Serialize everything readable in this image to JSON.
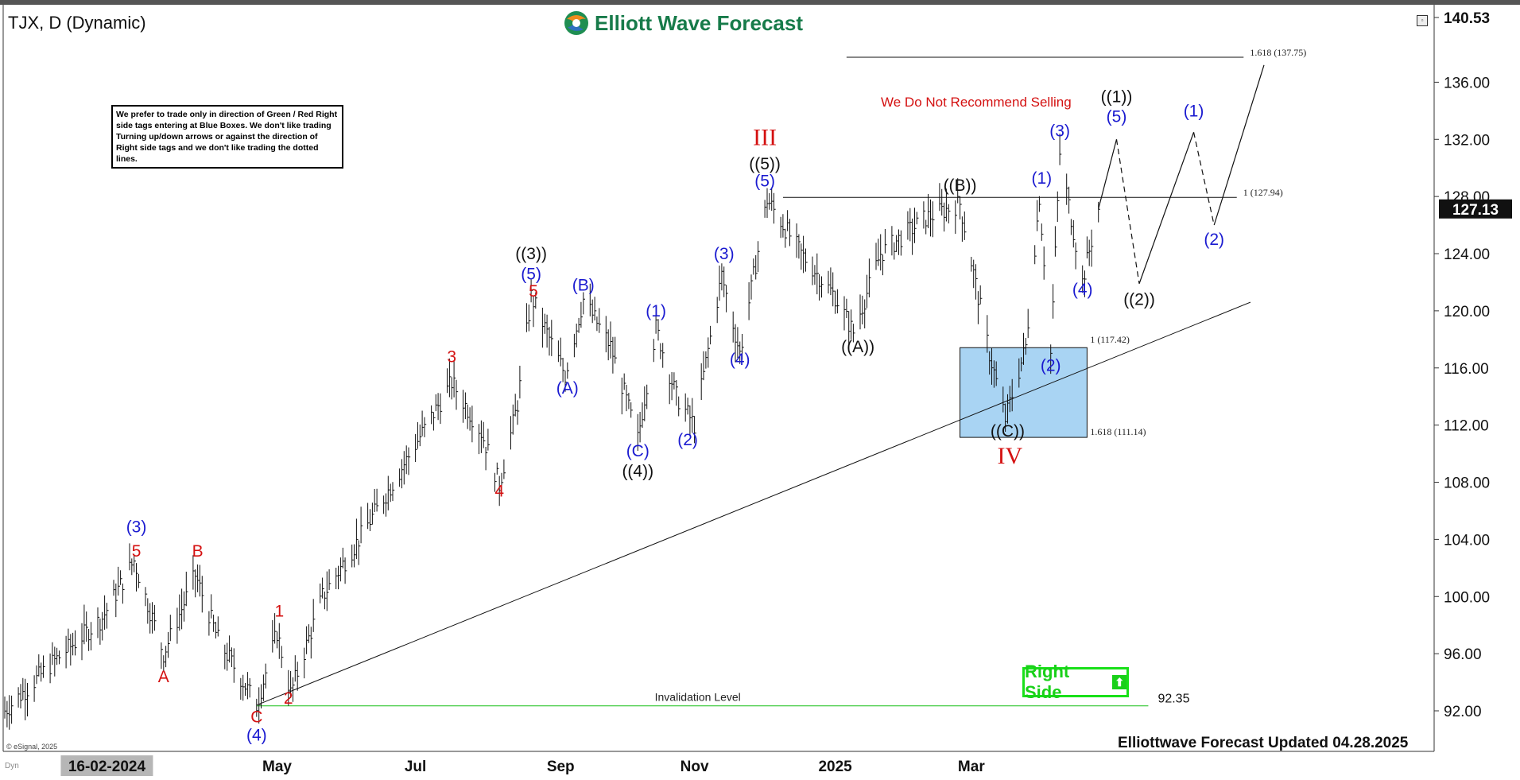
{
  "header": {
    "symbol": "TJX, D (Dynamic)",
    "logo_text": "Elliott Wave Forecast",
    "note": "We prefer to trade only in direction of Green / Red Right side tags entering at Blue Boxes. We don't like trading Turning up/down arrows or against the direction of Right side tags and we don't like trading the dotted lines.",
    "warning": "We Do Not Recommend Selling",
    "footer": "Elliottwave Forecast Updated 04.28.2025",
    "copyright": "© eSignal, 2025",
    "dyn": "Dyn",
    "right_side": "Right Side",
    "right_side_icon": "arrow-up-icon"
  },
  "colors": {
    "blue": "#1a1ad0",
    "red": "#d41111",
    "black": "#111111",
    "green": "#19d019",
    "box": "#a9d4f3"
  },
  "chart_data": {
    "type": "line",
    "title": "TJX, D (Dynamic)",
    "ylim": [
      89.6,
      142.0
    ],
    "grid": false,
    "price_axis": [
      "140.53",
      "136.00",
      "132.00",
      "128.00",
      "124.00",
      "120.00",
      "116.00",
      "112.00",
      "108.00",
      "104.00",
      "100.00",
      "96.00",
      "92.00"
    ],
    "current_price": "127.13",
    "top_price": "140.53",
    "time_axis": [
      {
        "label": "16-02-2024",
        "date": "2024-02-16",
        "highlight": true
      },
      {
        "label": "May",
        "date": "2024-05-01"
      },
      {
        "label": "Jul",
        "date": "2024-07-01"
      },
      {
        "label": "Sep",
        "date": "2024-09-03"
      },
      {
        "label": "Nov",
        "date": "2024-11-01"
      },
      {
        "label": "2025",
        "date": "2025-01-02"
      },
      {
        "label": "Mar",
        "date": "2025-03-03"
      }
    ],
    "price_path": [
      [
        "2024-01-02",
        92.0
      ],
      [
        "2024-01-24",
        95.5
      ],
      [
        "2024-02-14",
        98.5
      ],
      [
        "2024-02-28",
        102.5
      ],
      [
        "2024-03-12",
        96.0
      ],
      [
        "2024-03-26",
        101.5
      ],
      [
        "2024-04-05",
        97.0
      ],
      [
        "2024-04-22",
        92.4
      ],
      [
        "2024-05-01",
        97.5
      ],
      [
        "2024-05-07",
        93.2
      ],
      [
        "2024-05-21",
        100.0
      ],
      [
        "2024-06-06",
        104.0
      ],
      [
        "2024-06-25",
        109.0
      ],
      [
        "2024-07-17",
        115.0
      ],
      [
        "2024-07-30",
        111.5
      ],
      [
        "2024-08-07",
        107.8
      ],
      [
        "2024-08-15",
        113.5
      ],
      [
        "2024-08-21",
        121.0
      ],
      [
        "2024-09-05",
        115.5
      ],
      [
        "2024-09-13",
        120.8
      ],
      [
        "2024-09-25",
        117.5
      ],
      [
        "2024-10-07",
        111.0
      ],
      [
        "2024-10-15",
        118.8
      ],
      [
        "2024-10-24",
        114.0
      ],
      [
        "2024-11-01",
        112.0
      ],
      [
        "2024-11-13",
        122.5
      ],
      [
        "2024-11-21",
        117.0
      ],
      [
        "2024-12-03",
        127.8
      ],
      [
        "2024-12-18",
        124.0
      ],
      [
        "2025-01-02",
        121.0
      ],
      [
        "2025-01-10",
        118.5
      ],
      [
        "2025-01-22",
        124.0
      ],
      [
        "2025-02-11",
        126.5
      ],
      [
        "2025-02-26",
        127.5
      ],
      [
        "2025-03-06",
        121.0
      ],
      [
        "2025-03-11",
        117.0
      ],
      [
        "2025-03-18",
        112.4
      ],
      [
        "2025-03-27",
        117.5
      ],
      [
        "2025-04-02",
        128.0
      ],
      [
        "2025-04-07",
        117.0
      ],
      [
        "2025-04-11",
        131.0
      ],
      [
        "2025-04-21",
        122.0
      ],
      [
        "2025-04-28",
        127.13
      ]
    ],
    "projection": [
      {
        "from": [
          "2025-04-28",
          127.13
        ],
        "to": [
          "2025-05-06",
          132.0
        ],
        "style": "solid"
      },
      {
        "from": [
          "2025-05-06",
          132.0
        ],
        "to": [
          "2025-05-16",
          121.9
        ],
        "style": "dashed"
      },
      {
        "from": [
          "2025-05-16",
          121.9
        ],
        "to": [
          "2025-06-09",
          132.5
        ],
        "style": "solid"
      },
      {
        "from": [
          "2025-06-09",
          132.5
        ],
        "to": [
          "2025-06-18",
          126.0
        ],
        "style": "dashed"
      },
      {
        "from": [
          "2025-06-18",
          126.0
        ],
        "to": [
          "2025-07-10",
          137.2
        ],
        "style": "solid"
      }
    ],
    "trendline": {
      "from": [
        "2024-04-22",
        92.4
      ],
      "to": [
        "2025-07-04",
        120.6
      ]
    },
    "levels": [
      {
        "label": "1.618 (137.75)",
        "price": 137.75,
        "from": "2025-01-07",
        "to": "2025-07-01"
      },
      {
        "label": "1 (127.94)",
        "price": 127.94,
        "from": "2024-12-10",
        "to": "2025-06-28"
      },
      {
        "label": "Invalidation Level",
        "value_label": "92.35",
        "price": 92.35,
        "from": "2024-04-22",
        "to": "2025-05-20"
      }
    ],
    "blue_box": {
      "from": "2025-02-26",
      "to": "2025-04-23",
      "top": 117.42,
      "bottom": 111.14,
      "top_label": "1 (117.42)",
      "bottom_label": "1.618 (111.14)"
    },
    "wave_labels": [
      {
        "text": "(3)",
        "date": "2024-02-29",
        "price": 104.5,
        "color": "blue"
      },
      {
        "text": "5",
        "date": "2024-02-29",
        "price": 102.8,
        "color": "red"
      },
      {
        "text": "A",
        "date": "2024-03-12",
        "price": 94.0,
        "color": "red"
      },
      {
        "text": "B",
        "date": "2024-03-27",
        "price": 102.8,
        "color": "red"
      },
      {
        "text": "C",
        "date": "2024-04-22",
        "price": 91.2,
        "color": "red"
      },
      {
        "text": "(4)",
        "date": "2024-04-22",
        "price": 89.9,
        "color": "blue"
      },
      {
        "text": "1",
        "date": "2024-05-02",
        "price": 98.6,
        "color": "red"
      },
      {
        "text": "2",
        "date": "2024-05-06",
        "price": 92.5,
        "color": "red"
      },
      {
        "text": "3",
        "date": "2024-07-17",
        "price": 116.4,
        "color": "red"
      },
      {
        "text": "4",
        "date": "2024-08-07",
        "price": 107.0,
        "color": "red"
      },
      {
        "text": "((3))",
        "date": "2024-08-21",
        "price": 123.6,
        "color": "black"
      },
      {
        "text": "(5)",
        "date": "2024-08-21",
        "price": 122.2,
        "color": "blue"
      },
      {
        "text": "5",
        "date": "2024-08-22",
        "price": 121.0,
        "color": "red"
      },
      {
        "text": "(B)",
        "date": "2024-09-13",
        "price": 121.4,
        "color": "blue"
      },
      {
        "text": "(A)",
        "date": "2024-09-06",
        "price": 114.2,
        "color": "blue"
      },
      {
        "text": "(C)",
        "date": "2024-10-07",
        "price": 109.8,
        "color": "blue"
      },
      {
        "text": "((4))",
        "date": "2024-10-07",
        "price": 108.4,
        "color": "black"
      },
      {
        "text": "(1)",
        "date": "2024-10-15",
        "price": 119.6,
        "color": "blue"
      },
      {
        "text": "(2)",
        "date": "2024-10-29",
        "price": 110.6,
        "color": "blue"
      },
      {
        "text": "(3)",
        "date": "2024-11-14",
        "price": 123.6,
        "color": "blue"
      },
      {
        "text": "(4)",
        "date": "2024-11-21",
        "price": 116.2,
        "color": "blue"
      },
      {
        "text": "III",
        "date": "2024-12-02",
        "price": 131.6,
        "color": "red"
      },
      {
        "text": "((5))",
        "date": "2024-12-02",
        "price": 129.9,
        "color": "black"
      },
      {
        "text": "(5)",
        "date": "2024-12-02",
        "price": 128.7,
        "color": "blue"
      },
      {
        "text": "((A))",
        "date": "2025-01-12",
        "price": 117.1,
        "color": "black"
      },
      {
        "text": "((B))",
        "date": "2025-02-26",
        "price": 128.4,
        "color": "black"
      },
      {
        "text": "((C))",
        "date": "2025-03-19",
        "price": 111.2,
        "color": "black"
      },
      {
        "text": "IV",
        "date": "2025-03-20",
        "price": 109.3,
        "color": "red"
      },
      {
        "text": "(1)",
        "date": "2025-04-03",
        "price": 128.9,
        "color": "blue"
      },
      {
        "text": "(2)",
        "date": "2025-04-07",
        "price": 115.8,
        "color": "blue"
      },
      {
        "text": "(3)",
        "date": "2025-04-11",
        "price": 132.2,
        "color": "blue"
      },
      {
        "text": "(4)",
        "date": "2025-04-21",
        "price": 121.1,
        "color": "blue"
      },
      {
        "text": "((1))",
        "date": "2025-05-06",
        "price": 134.6,
        "color": "black"
      },
      {
        "text": "(5)",
        "date": "2025-05-06",
        "price": 133.2,
        "color": "blue"
      },
      {
        "text": "((2))",
        "date": "2025-05-16",
        "price": 120.4,
        "color": "black"
      },
      {
        "text": "(1)",
        "date": "2025-06-09",
        "price": 133.6,
        "color": "blue"
      },
      {
        "text": "(2)",
        "date": "2025-06-18",
        "price": 124.6,
        "color": "blue"
      }
    ]
  }
}
